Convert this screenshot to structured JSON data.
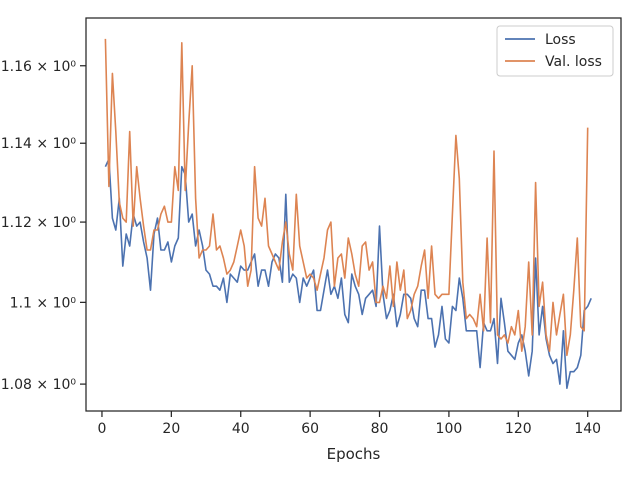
{
  "chart_data": {
    "type": "line",
    "title": "",
    "xlabel": "Epochs",
    "ylabel": "",
    "yscale": "log",
    "xlim": [
      -4.6,
      149.6
    ],
    "ylim": [
      1.0735,
      1.1725
    ],
    "x_ticks": [
      0,
      20,
      40,
      60,
      80,
      100,
      120,
      140
    ],
    "y_ticks": [
      {
        "value": 1.08,
        "label": "1.08 × 10⁰"
      },
      {
        "value": 1.1,
        "label": "1.1 × 10⁰"
      },
      {
        "value": 1.12,
        "label": "1.12 × 10⁰"
      },
      {
        "value": 1.14,
        "label": "1.14 × 10⁰"
      },
      {
        "value": 1.16,
        "label": "1.16 × 10⁰"
      }
    ],
    "grid": false,
    "legend": {
      "position": "top-right",
      "entries": [
        "Loss",
        "Val. loss"
      ]
    },
    "x_start": 1,
    "series": [
      {
        "name": "Loss",
        "color": "#4c72b0",
        "values": [
          1.134,
          1.136,
          1.121,
          1.118,
          1.126,
          1.109,
          1.117,
          1.114,
          1.122,
          1.119,
          1.12,
          1.115,
          1.111,
          1.103,
          1.117,
          1.121,
          1.113,
          1.113,
          1.115,
          1.11,
          1.114,
          1.116,
          1.134,
          1.132,
          1.12,
          1.122,
          1.114,
          1.118,
          1.114,
          1.108,
          1.107,
          1.104,
          1.104,
          1.103,
          1.106,
          1.1,
          1.107,
          1.106,
          1.105,
          1.109,
          1.108,
          1.108,
          1.11,
          1.112,
          1.104,
          1.108,
          1.108,
          1.104,
          1.11,
          1.112,
          1.111,
          1.105,
          1.127,
          1.105,
          1.107,
          1.106,
          1.1,
          1.106,
          1.104,
          1.106,
          1.108,
          1.098,
          1.098,
          1.103,
          1.108,
          1.102,
          1.104,
          1.101,
          1.106,
          1.097,
          1.095,
          1.107,
          1.104,
          1.102,
          1.097,
          1.101,
          1.102,
          1.103,
          1.099,
          1.119,
          1.102,
          1.096,
          1.098,
          1.102,
          1.094,
          1.097,
          1.102,
          1.102,
          1.101,
          1.096,
          1.094,
          1.103,
          1.103,
          1.096,
          1.096,
          1.089,
          1.092,
          1.099,
          1.091,
          1.09,
          1.099,
          1.098,
          1.106,
          1.101,
          1.093,
          1.093,
          1.093,
          1.093,
          1.084,
          1.095,
          1.093,
          1.093,
          1.096,
          1.085,
          1.101,
          1.095,
          1.088,
          1.087,
          1.086,
          1.09,
          1.092,
          1.088,
          1.082,
          1.088,
          1.111,
          1.092,
          1.099,
          1.091,
          1.087,
          1.085,
          1.086,
          1.08,
          1.093,
          1.079,
          1.083,
          1.083,
          1.084,
          1.087,
          1.098,
          1.099,
          1.101
        ]
      },
      {
        "name": "Val. loss",
        "color": "#dd8452",
        "values": [
          1.167,
          1.129,
          1.158,
          1.143,
          1.125,
          1.121,
          1.12,
          1.143,
          1.119,
          1.134,
          1.126,
          1.119,
          1.113,
          1.113,
          1.118,
          1.118,
          1.122,
          1.124,
          1.12,
          1.12,
          1.134,
          1.128,
          1.166,
          1.128,
          1.145,
          1.16,
          1.126,
          1.111,
          1.113,
          1.113,
          1.114,
          1.122,
          1.113,
          1.114,
          1.111,
          1.107,
          1.108,
          1.11,
          1.114,
          1.118,
          1.114,
          1.104,
          1.108,
          1.134,
          1.121,
          1.119,
          1.126,
          1.114,
          1.112,
          1.11,
          1.108,
          1.115,
          1.12,
          1.112,
          1.108,
          1.127,
          1.114,
          1.11,
          1.106,
          1.107,
          1.106,
          1.103,
          1.107,
          1.111,
          1.118,
          1.12,
          1.104,
          1.111,
          1.112,
          1.106,
          1.116,
          1.112,
          1.107,
          1.104,
          1.114,
          1.115,
          1.108,
          1.11,
          1.1,
          1.1,
          1.104,
          1.101,
          1.109,
          1.099,
          1.11,
          1.103,
          1.108,
          1.096,
          1.098,
          1.102,
          1.104,
          1.109,
          1.113,
          1.101,
          1.114,
          1.102,
          1.101,
          1.102,
          1.102,
          1.102,
          1.122,
          1.142,
          1.131,
          1.105,
          1.096,
          1.097,
          1.096,
          1.094,
          1.102,
          1.093,
          1.116,
          1.095,
          1.138,
          1.092,
          1.091,
          1.092,
          1.09,
          1.094,
          1.092,
          1.098,
          1.088,
          1.094,
          1.11,
          1.092,
          1.13,
          1.099,
          1.105,
          1.092,
          1.088,
          1.1,
          1.092,
          1.097,
          1.102,
          1.087,
          1.092,
          1.103,
          1.116,
          1.094,
          1.093,
          1.144
        ]
      }
    ]
  }
}
